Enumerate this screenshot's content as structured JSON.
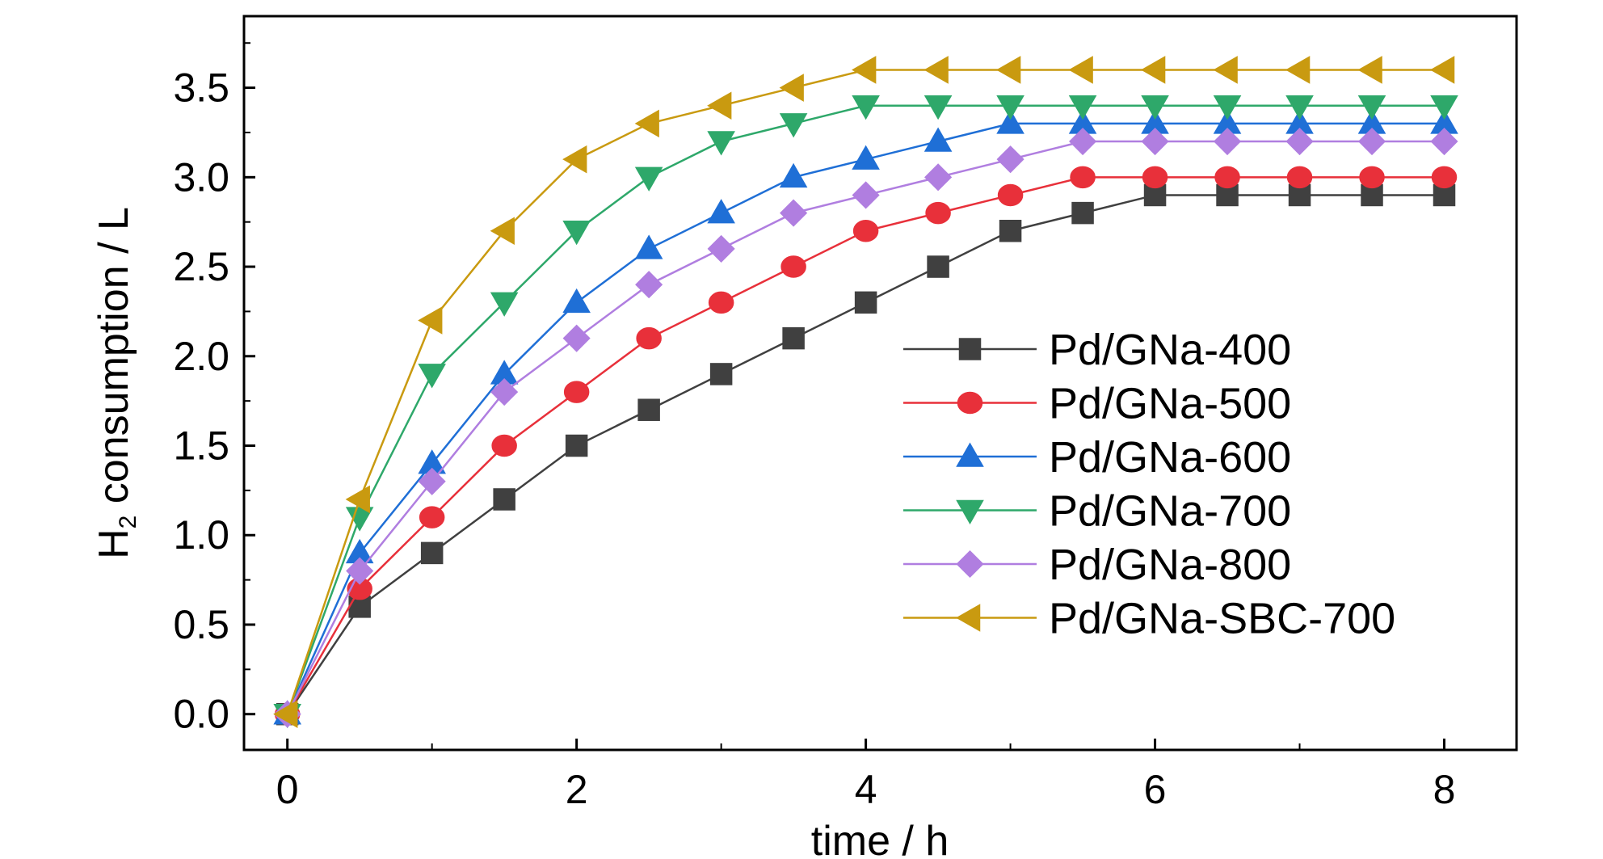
{
  "chart_data": {
    "type": "line",
    "title": "",
    "xlabel": "time / h",
    "ylabel": {
      "prefix": "H",
      "subscript": "2",
      "rest": " consumption / L"
    },
    "xlim": [
      -0.3,
      8.5
    ],
    "ylim": [
      -0.2,
      3.9
    ],
    "xticks": [
      0,
      2,
      4,
      6,
      8
    ],
    "xtick_labels": [
      "0",
      "2",
      "4",
      "6",
      "8"
    ],
    "yticks": [
      0,
      0.5,
      1,
      1.5,
      2,
      2.5,
      3,
      3.5
    ],
    "ytick_labels": [
      "0.0",
      "0.5",
      "1.0",
      "1.5",
      "2.0",
      "2.5",
      "3.0",
      "3.5"
    ],
    "grid": false,
    "legend_position": "right",
    "x": [
      0,
      0.5,
      1,
      1.5,
      2,
      2.5,
      3,
      3.5,
      4,
      4.5,
      5,
      5.5,
      6,
      6.5,
      7,
      7.5,
      8
    ],
    "series": [
      {
        "name": "Pd/GNa-400",
        "color": "#404040",
        "marker": "square",
        "values": [
          0,
          0.6,
          0.9,
          1.2,
          1.5,
          1.7,
          1.9,
          2.1,
          2.3,
          2.5,
          2.7,
          2.8,
          2.9,
          2.9,
          2.9,
          2.9,
          2.9
        ]
      },
      {
        "name": "Pd/GNa-500",
        "color": "#e8303a",
        "marker": "circle",
        "values": [
          0,
          0.7,
          1.1,
          1.5,
          1.8,
          2.1,
          2.3,
          2.5,
          2.7,
          2.8,
          2.9,
          3.0,
          3.0,
          3.0,
          3.0,
          3.0,
          3.0
        ]
      },
      {
        "name": "Pd/GNa-600",
        "color": "#1f6fd6",
        "marker": "triangle-up",
        "values": [
          0,
          0.9,
          1.4,
          1.9,
          2.3,
          2.6,
          2.8,
          3.0,
          3.1,
          3.2,
          3.3,
          3.3,
          3.3,
          3.3,
          3.3,
          3.3,
          3.3
        ]
      },
      {
        "name": "Pd/GNa-700",
        "color": "#2ea86a",
        "marker": "triangle-down",
        "values": [
          0,
          1.1,
          1.9,
          2.3,
          2.7,
          3.0,
          3.2,
          3.3,
          3.4,
          3.4,
          3.4,
          3.4,
          3.4,
          3.4,
          3.4,
          3.4,
          3.4
        ]
      },
      {
        "name": "Pd/GNa-800",
        "color": "#b07ee0",
        "marker": "diamond",
        "values": [
          0,
          0.8,
          1.3,
          1.8,
          2.1,
          2.4,
          2.6,
          2.8,
          2.9,
          3.0,
          3.1,
          3.2,
          3.2,
          3.2,
          3.2,
          3.2,
          3.2
        ]
      },
      {
        "name": "Pd/GNa-SBC-700",
        "color": "#c99a10",
        "marker": "triangle-left",
        "values": [
          0,
          1.2,
          2.2,
          2.7,
          3.1,
          3.3,
          3.4,
          3.5,
          3.6,
          3.6,
          3.6,
          3.6,
          3.6,
          3.6,
          3.6,
          3.6,
          3.6
        ]
      }
    ]
  }
}
